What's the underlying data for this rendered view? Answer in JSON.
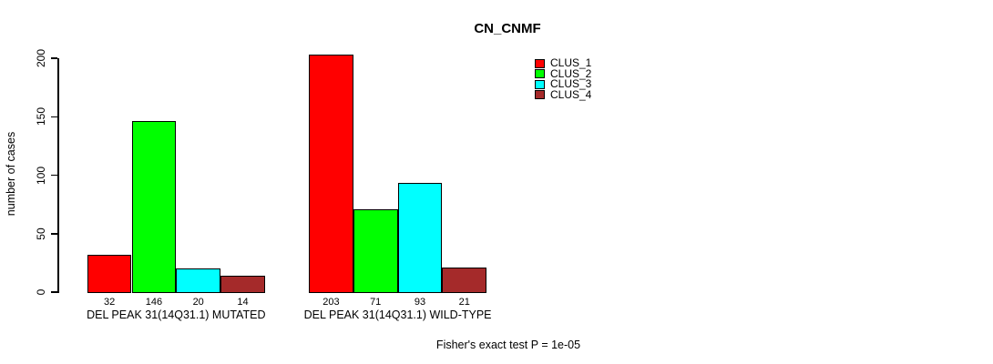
{
  "title": "CN_CNMF",
  "footer": "Fisher's exact test P = 1e-05",
  "colors": {
    "clus_1": "#FF0000",
    "clus_2": "#00FF00",
    "clus_3": "#00FFFF",
    "clus_4": "#A52A2A",
    "axis": "#000000",
    "background": "#FFFFFF"
  },
  "legend": {
    "items": [
      {
        "label": "CLUS_1",
        "color": "#FF0000"
      },
      {
        "label": "CLUS_2",
        "color": "#00FF00"
      },
      {
        "label": "CLUS_3",
        "color": "#00FFFF"
      },
      {
        "label": "CLUS_4",
        "color": "#A52A2A"
      }
    ]
  },
  "chart_data": {
    "type": "bar",
    "title": "CN_CNMF",
    "xlabel": "",
    "ylabel": "number of cases",
    "categories": [
      "DEL PEAK 31(14Q31.1) MUTATED",
      "DEL PEAK 31(14Q31.1) WILD-TYPE"
    ],
    "series": [
      {
        "name": "CLUS_1",
        "color": "#FF0000",
        "values": [
          32,
          203
        ]
      },
      {
        "name": "CLUS_2",
        "color": "#00FF00",
        "values": [
          146,
          71
        ]
      },
      {
        "name": "CLUS_3",
        "color": "#00FFFF",
        "values": [
          20,
          93
        ]
      },
      {
        "name": "CLUS_4",
        "color": "#A52A2A",
        "values": [
          14,
          21
        ]
      }
    ],
    "bar_value_labels": [
      [
        "32",
        "146",
        "20",
        "14"
      ],
      [
        "203",
        "71",
        "93",
        "21"
      ]
    ],
    "yticks": [
      0,
      50,
      100,
      150,
      200
    ],
    "ylim": [
      0,
      203
    ],
    "grid": false,
    "legend_position": "top-right",
    "annotation": "Fisher's exact test P = 1e-05"
  }
}
